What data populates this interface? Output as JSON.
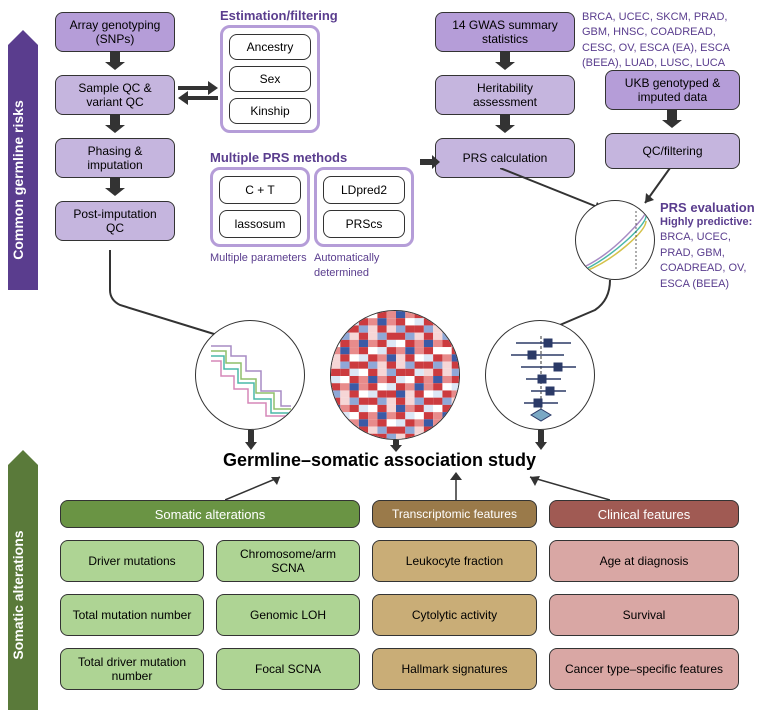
{
  "side_labels": {
    "top": "Common germline risks",
    "bottom": "Somatic alterations",
    "top_color": "#5a3d8e",
    "bottom_color": "#5a7a3a"
  },
  "top_left": {
    "genotyping": "Array genotyping (SNPs)",
    "qc": "Sample QC & variant QC",
    "phasing": "Phasing & imputation",
    "post": "Post-imputation QC"
  },
  "estimation": {
    "title": "Estimation/filtering",
    "ancestry": "Ancestry",
    "sex": "Sex",
    "kinship": "Kinship"
  },
  "gwas": {
    "title": "14 GWAS summary statistics",
    "heritability": "Heritability assessment",
    "prs_calc": "PRS calculation",
    "abbr": "BRCA, UCEC, SKCM, PRAD, GBM, HNSC, COADREAD, CESC, OV, ESCA (EA), ESCA (BEEA), LUAD, LUSC, LUCA"
  },
  "ukb": {
    "title": "UKB genotyped & imputed data",
    "qc": "QC/filtering"
  },
  "prs_methods": {
    "title": "Multiple PRS methods",
    "ct": "C + T",
    "ldpred": "LDpred2",
    "lasso": "lassosum",
    "prscs": "PRScs",
    "multi_params": "Multiple parameters",
    "auto": "Automatically determined"
  },
  "prs_eval": {
    "title": "PRS evaluation",
    "subtitle": "Highly predictive:",
    "list": "BRCA, UCEC, PRAD, GBM, COADREAD, OV, ESCA (BEEA)"
  },
  "main_title": "Germline–somatic association study",
  "somatic": {
    "header": "Somatic alterations",
    "driver_mut": "Driver mutations",
    "chr_scna": "Chromosome/arm SCNA",
    "total_mut": "Total mutation number",
    "loh": "Genomic LOH",
    "total_driver": "Total driver mutation number",
    "focal_scna": "Focal SCNA"
  },
  "transcriptomic": {
    "header": "Transcriptomic features",
    "leukocyte": "Leukocyte fraction",
    "cytolytic": "Cytolytic activity",
    "hallmark": "Hallmark signatures"
  },
  "clinical": {
    "header": "Clinical features",
    "age": "Age at diagnosis",
    "survival": "Survival",
    "cancer_type": "Cancer type–specific features"
  },
  "colors": {
    "purple_light": "#c5b5de",
    "purple_dark": "#9b7fc4",
    "purple_med": "#b59dd8",
    "green_header": "#6a9444",
    "green_light": "#aed494",
    "brown": "#9a7a4a",
    "tan": "#c9ad77",
    "red_dark": "#a05a53",
    "red_light": "#d9a7a4"
  },
  "chart_circles": {
    "km_lines": [
      "#a78bc4",
      "#8fbf6a",
      "#4ab8a8",
      "#d687b8"
    ],
    "heatmap_palette": [
      "#3b5aa6",
      "#8fa8d7",
      "#dce7f5",
      "#ffffff",
      "#f6d6d6",
      "#e88b8b",
      "#cc3b3f"
    ],
    "forest_color": "#2b3a67",
    "prs_curve_colors": [
      "#a78bc4",
      "#4ab8a8",
      "#d4c24a"
    ]
  }
}
